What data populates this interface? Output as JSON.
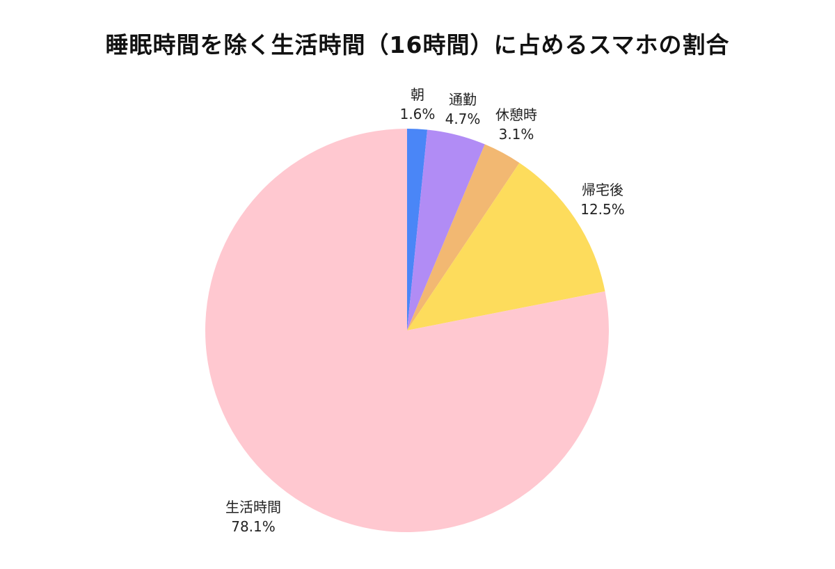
{
  "chart_data": {
    "type": "pie",
    "title": "睡眠時間を除く生活時間（16時間）に占めるスマホの割合",
    "start_angle_deg": 0,
    "direction": "clockwise",
    "slices": [
      {
        "label": "朝",
        "value": 1.6,
        "value_label": "1.6%",
        "color": "#4A86F7"
      },
      {
        "label": "通勤",
        "value": 4.7,
        "value_label": "4.7%",
        "color": "#B18CF5"
      },
      {
        "label": "休憩時",
        "value": 3.1,
        "value_label": "3.1%",
        "color": "#F2B872"
      },
      {
        "label": "帰宅後",
        "value": 12.5,
        "value_label": "12.5%",
        "color": "#FDDC5C"
      },
      {
        "label": "生活時間",
        "value": 78.1,
        "value_label": "78.1%",
        "color": "#FFC8D0"
      }
    ]
  }
}
